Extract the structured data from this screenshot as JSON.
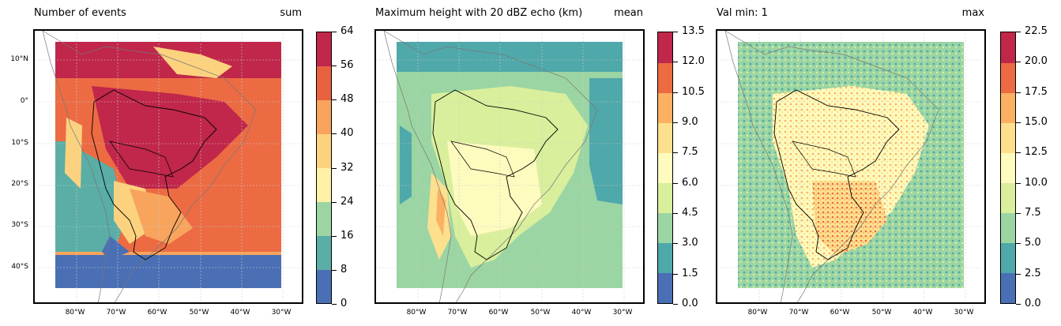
{
  "panels": [
    {
      "title": "Number of events",
      "stat": "sum",
      "colorbar": {
        "ticks": [
          "0",
          "8",
          "16",
          "24",
          "32",
          "40",
          "48",
          "56",
          "64"
        ],
        "colors": [
          "#4a6fb5",
          "#5aaea6",
          "#9dd5a2",
          "#fff1a6",
          "#fdd27e",
          "#f8a45c",
          "#e8623f",
          "#c0274a"
        ]
      },
      "lat_labels": [
        "10°N",
        "0°",
        "10°S",
        "20°S",
        "30°S",
        "40°S"
      ],
      "lon_labels": [
        "80°W",
        "70°W",
        "60°W",
        "50°W",
        "40°W",
        "30°W"
      ]
    },
    {
      "title": "Maximum height with 20 dBZ echo (km)",
      "stat": "mean",
      "colorbar": {
        "ticks": [
          "0.0",
          "1.5",
          "3.0",
          "4.5",
          "6.0",
          "7.5",
          "9.0",
          "10.5",
          "12.0",
          "13.5"
        ],
        "colors": [
          "#4a6fb5",
          "#4fa8aa",
          "#9bd5a3",
          "#d9ef9c",
          "#fdfbbd",
          "#fde08e",
          "#fbb062",
          "#ec6b43",
          "#c0274a"
        ]
      },
      "lon_labels": [
        "80°W",
        "70°W",
        "60°W",
        "50°W",
        "40°W",
        "30°W"
      ]
    },
    {
      "title": "Val min: 1",
      "stat": "max",
      "colorbar": {
        "ticks": [
          "0.0",
          "2.5",
          "5.0",
          "7.5",
          "10.0",
          "12.5",
          "15.0",
          "17.5",
          "20.0",
          "22.5"
        ],
        "colors": [
          "#4a6fb5",
          "#4fa8aa",
          "#9bd5a3",
          "#d9ef9c",
          "#fdfbbd",
          "#fde08e",
          "#fbb062",
          "#ec6b43",
          "#c0274a"
        ]
      },
      "lon_labels": [
        "80°W",
        "70°W",
        "60°W",
        "50°W",
        "40°W",
        "30°W"
      ]
    }
  ]
}
